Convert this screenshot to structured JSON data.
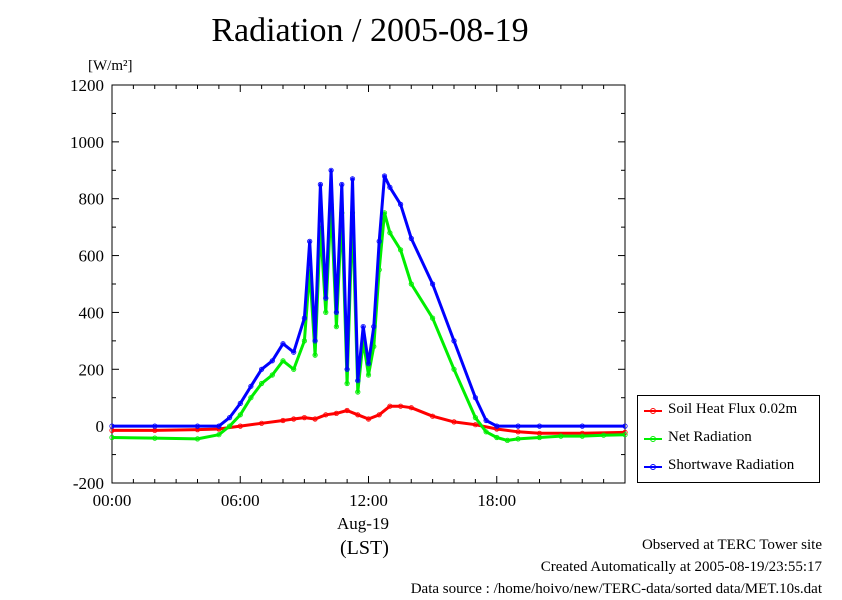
{
  "title": "Radiation / 2005-08-19",
  "unit_label": "[W/m²]",
  "x_date_label": "Aug-19",
  "x_axis_label": "(LST)",
  "footer": [
    "Observed at TERC Tower site",
    "Created Automatically at 2005-08-19/23:55:17",
    "Data source : /home/hoivo/new/TERC-data/sorted  data/MET.10s.dat"
  ],
  "chart_data": {
    "type": "line",
    "title": "Radiation / 2005-08-19",
    "ylabel": "[W/m²]",
    "xlabel": "(LST)",
    "xlim": [
      0,
      24
    ],
    "ylim": [
      -200,
      1200
    ],
    "x_ticks": [
      0,
      6,
      12,
      18
    ],
    "x_tick_labels": [
      "00:00",
      "06:00",
      "12:00",
      "18:00"
    ],
    "y_ticks": [
      -200,
      0,
      200,
      400,
      600,
      800,
      1000,
      1200
    ],
    "y_tick_labels": [
      "-200",
      "0",
      "200",
      "400",
      "600",
      "800",
      "1000",
      "1200"
    ],
    "legend_position": "outside-right",
    "series": [
      {
        "name": "Soil Heat Flux 0.02m",
        "color": "#ff0000",
        "x": [
          0,
          2,
          4,
          5,
          6,
          7,
          8,
          8.5,
          9,
          9.5,
          10,
          10.5,
          11,
          11.5,
          12,
          12.5,
          13,
          13.5,
          14,
          15,
          16,
          17,
          18,
          19,
          20,
          22,
          24
        ],
        "values": [
          -15,
          -15,
          -12,
          -10,
          0,
          10,
          20,
          25,
          30,
          25,
          40,
          45,
          55,
          40,
          25,
          40,
          70,
          70,
          65,
          35,
          15,
          5,
          -10,
          -20,
          -25,
          -25,
          -22
        ]
      },
      {
        "name": "Net Radiation",
        "color": "#00ee00",
        "x": [
          0,
          2,
          4,
          5,
          5.5,
          6,
          6.5,
          7,
          7.5,
          8,
          8.5,
          9,
          9.25,
          9.5,
          9.75,
          10,
          10.25,
          10.5,
          10.75,
          11,
          11.25,
          11.5,
          11.75,
          12,
          12.25,
          12.5,
          12.75,
          13,
          13.5,
          14,
          15,
          16,
          17,
          17.5,
          18,
          18.5,
          19,
          20,
          21,
          22,
          23,
          24
        ],
        "values": [
          -40,
          -42,
          -45,
          -30,
          0,
          40,
          100,
          150,
          180,
          230,
          200,
          300,
          550,
          250,
          700,
          400,
          780,
          350,
          750,
          150,
          750,
          120,
          300,
          180,
          280,
          550,
          750,
          680,
          620,
          500,
          380,
          200,
          30,
          -20,
          -40,
          -50,
          -45,
          -40,
          -35,
          -35,
          -32,
          -30
        ]
      },
      {
        "name": "Shortwave Radiation",
        "color": "#0000ff",
        "x": [
          0,
          2,
          4,
          5,
          5.5,
          6,
          6.5,
          7,
          7.5,
          8,
          8.5,
          9,
          9.25,
          9.5,
          9.75,
          10,
          10.25,
          10.5,
          10.75,
          11,
          11.25,
          11.5,
          11.75,
          12,
          12.25,
          12.5,
          12.75,
          13,
          13.5,
          14,
          15,
          16,
          17,
          17.5,
          18,
          19,
          20,
          22,
          24
        ],
        "values": [
          0,
          0,
          0,
          0,
          30,
          80,
          140,
          200,
          230,
          290,
          260,
          380,
          650,
          300,
          850,
          450,
          900,
          400,
          850,
          200,
          870,
          160,
          350,
          220,
          350,
          650,
          880,
          840,
          780,
          660,
          500,
          300,
          100,
          20,
          0,
          0,
          0,
          0,
          0
        ]
      }
    ]
  }
}
